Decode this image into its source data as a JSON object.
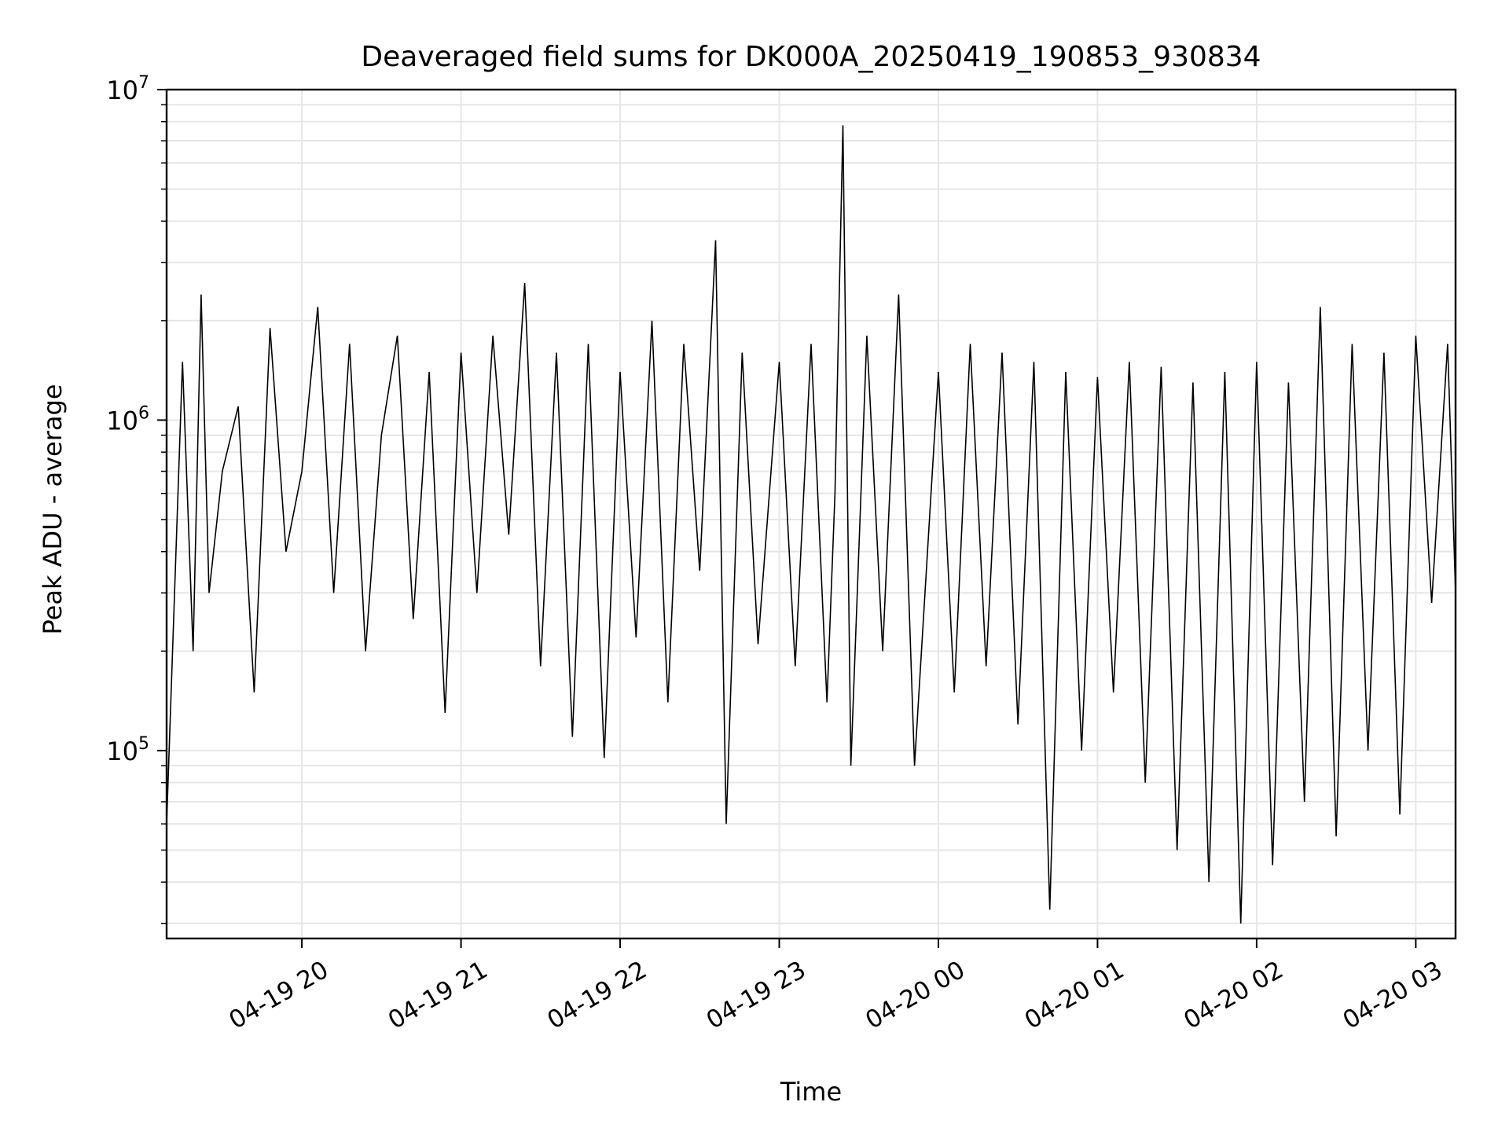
{
  "chart_data": {
    "type": "line",
    "title": "Deaveraged field sums for DK000A_20250419_190853_930834",
    "xlabel": "Time",
    "ylabel": "Peak ADU - average",
    "yscale": "log",
    "ylim": [
      27000,
      10000000
    ],
    "xlim": [
      "2025-04-19 19:09",
      "2025-04-20 03:15"
    ],
    "grid": true,
    "legend": "none",
    "line_color": "#000000",
    "grid_color": "#e6e6e6",
    "x_ticks": [
      {
        "value": "2025-04-19 20:00",
        "label": "04-19 20"
      },
      {
        "value": "2025-04-19 21:00",
        "label": "04-19 21"
      },
      {
        "value": "2025-04-19 22:00",
        "label": "04-19 22"
      },
      {
        "value": "2025-04-19 23:00",
        "label": "04-19 23"
      },
      {
        "value": "2025-04-20 00:00",
        "label": "04-20 00"
      },
      {
        "value": "2025-04-20 01:00",
        "label": "04-20 01"
      },
      {
        "value": "2025-04-20 02:00",
        "label": "04-20 02"
      },
      {
        "value": "2025-04-20 03:00",
        "label": "04-20 03"
      }
    ],
    "y_ticks": [
      {
        "value": 100000,
        "base": "10",
        "exp": "5"
      },
      {
        "value": 1000000,
        "base": "10",
        "exp": "6"
      },
      {
        "value": 10000000,
        "base": "10",
        "exp": "7"
      }
    ],
    "series": [
      {
        "x": [
          "2025-04-19 19:09",
          "2025-04-19 19:15",
          "2025-04-19 19:19",
          "2025-04-19 19:22",
          "2025-04-19 19:25",
          "2025-04-19 19:30",
          "2025-04-19 19:36",
          "2025-04-19 19:42",
          "2025-04-19 19:48",
          "2025-04-19 19:54",
          "2025-04-19 20:00",
          "2025-04-19 20:06",
          "2025-04-19 20:12",
          "2025-04-19 20:18",
          "2025-04-19 20:24",
          "2025-04-19 20:30",
          "2025-04-19 20:36",
          "2025-04-19 20:42",
          "2025-04-19 20:48",
          "2025-04-19 20:54",
          "2025-04-19 21:00",
          "2025-04-19 21:06",
          "2025-04-19 21:12",
          "2025-04-19 21:18",
          "2025-04-19 21:24",
          "2025-04-19 21:30",
          "2025-04-19 21:36",
          "2025-04-19 21:42",
          "2025-04-19 21:48",
          "2025-04-19 21:54",
          "2025-04-19 22:00",
          "2025-04-19 22:06",
          "2025-04-19 22:12",
          "2025-04-19 22:18",
          "2025-04-19 22:24",
          "2025-04-19 22:30",
          "2025-04-19 22:36",
          "2025-04-19 22:40",
          "2025-04-19 22:46",
          "2025-04-19 22:52",
          "2025-04-19 23:00",
          "2025-04-19 23:06",
          "2025-04-19 23:12",
          "2025-04-19 23:18",
          "2025-04-19 23:21",
          "2025-04-19 23:24",
          "2025-04-19 23:27",
          "2025-04-19 23:33",
          "2025-04-19 23:39",
          "2025-04-19 23:45",
          "2025-04-19 23:51",
          "2025-04-20 00:00",
          "2025-04-20 00:06",
          "2025-04-20 00:12",
          "2025-04-20 00:18",
          "2025-04-20 00:24",
          "2025-04-20 00:30",
          "2025-04-20 00:36",
          "2025-04-20 00:42",
          "2025-04-20 00:48",
          "2025-04-20 00:54",
          "2025-04-20 01:00",
          "2025-04-20 01:06",
          "2025-04-20 01:12",
          "2025-04-20 01:18",
          "2025-04-20 01:24",
          "2025-04-20 01:30",
          "2025-04-20 01:36",
          "2025-04-20 01:42",
          "2025-04-20 01:48",
          "2025-04-20 01:54",
          "2025-04-20 02:00",
          "2025-04-20 02:06",
          "2025-04-20 02:12",
          "2025-04-20 02:18",
          "2025-04-20 02:24",
          "2025-04-20 02:30",
          "2025-04-20 02:36",
          "2025-04-20 02:42",
          "2025-04-20 02:48",
          "2025-04-20 02:54",
          "2025-04-20 03:00",
          "2025-04-20 03:06",
          "2025-04-20 03:12",
          "2025-04-20 03:15"
        ],
        "y": [
          60000,
          1500000,
          200000,
          2400000,
          300000,
          700000,
          1100000,
          150000,
          1900000,
          400000,
          700000,
          2200000,
          300000,
          1700000,
          200000,
          900000,
          1800000,
          250000,
          1400000,
          130000,
          1600000,
          300000,
          1800000,
          450000,
          2600000,
          180000,
          1600000,
          110000,
          1700000,
          95000,
          1400000,
          220000,
          2000000,
          140000,
          1700000,
          350000,
          3500000,
          60000,
          1600000,
          210000,
          1500000,
          180000,
          1700000,
          140000,
          600000,
          7800000,
          90000,
          1800000,
          200000,
          2400000,
          90000,
          1400000,
          150000,
          1700000,
          180000,
          1600000,
          120000,
          1500000,
          33000,
          1400000,
          100000,
          1350000,
          150000,
          1500000,
          80000,
          1450000,
          50000,
          1300000,
          40000,
          1400000,
          30000,
          1500000,
          45000,
          1300000,
          70000,
          2200000,
          55000,
          1700000,
          100000,
          1600000,
          64000,
          1800000,
          280000,
          1700000,
          300000
        ]
      }
    ]
  }
}
